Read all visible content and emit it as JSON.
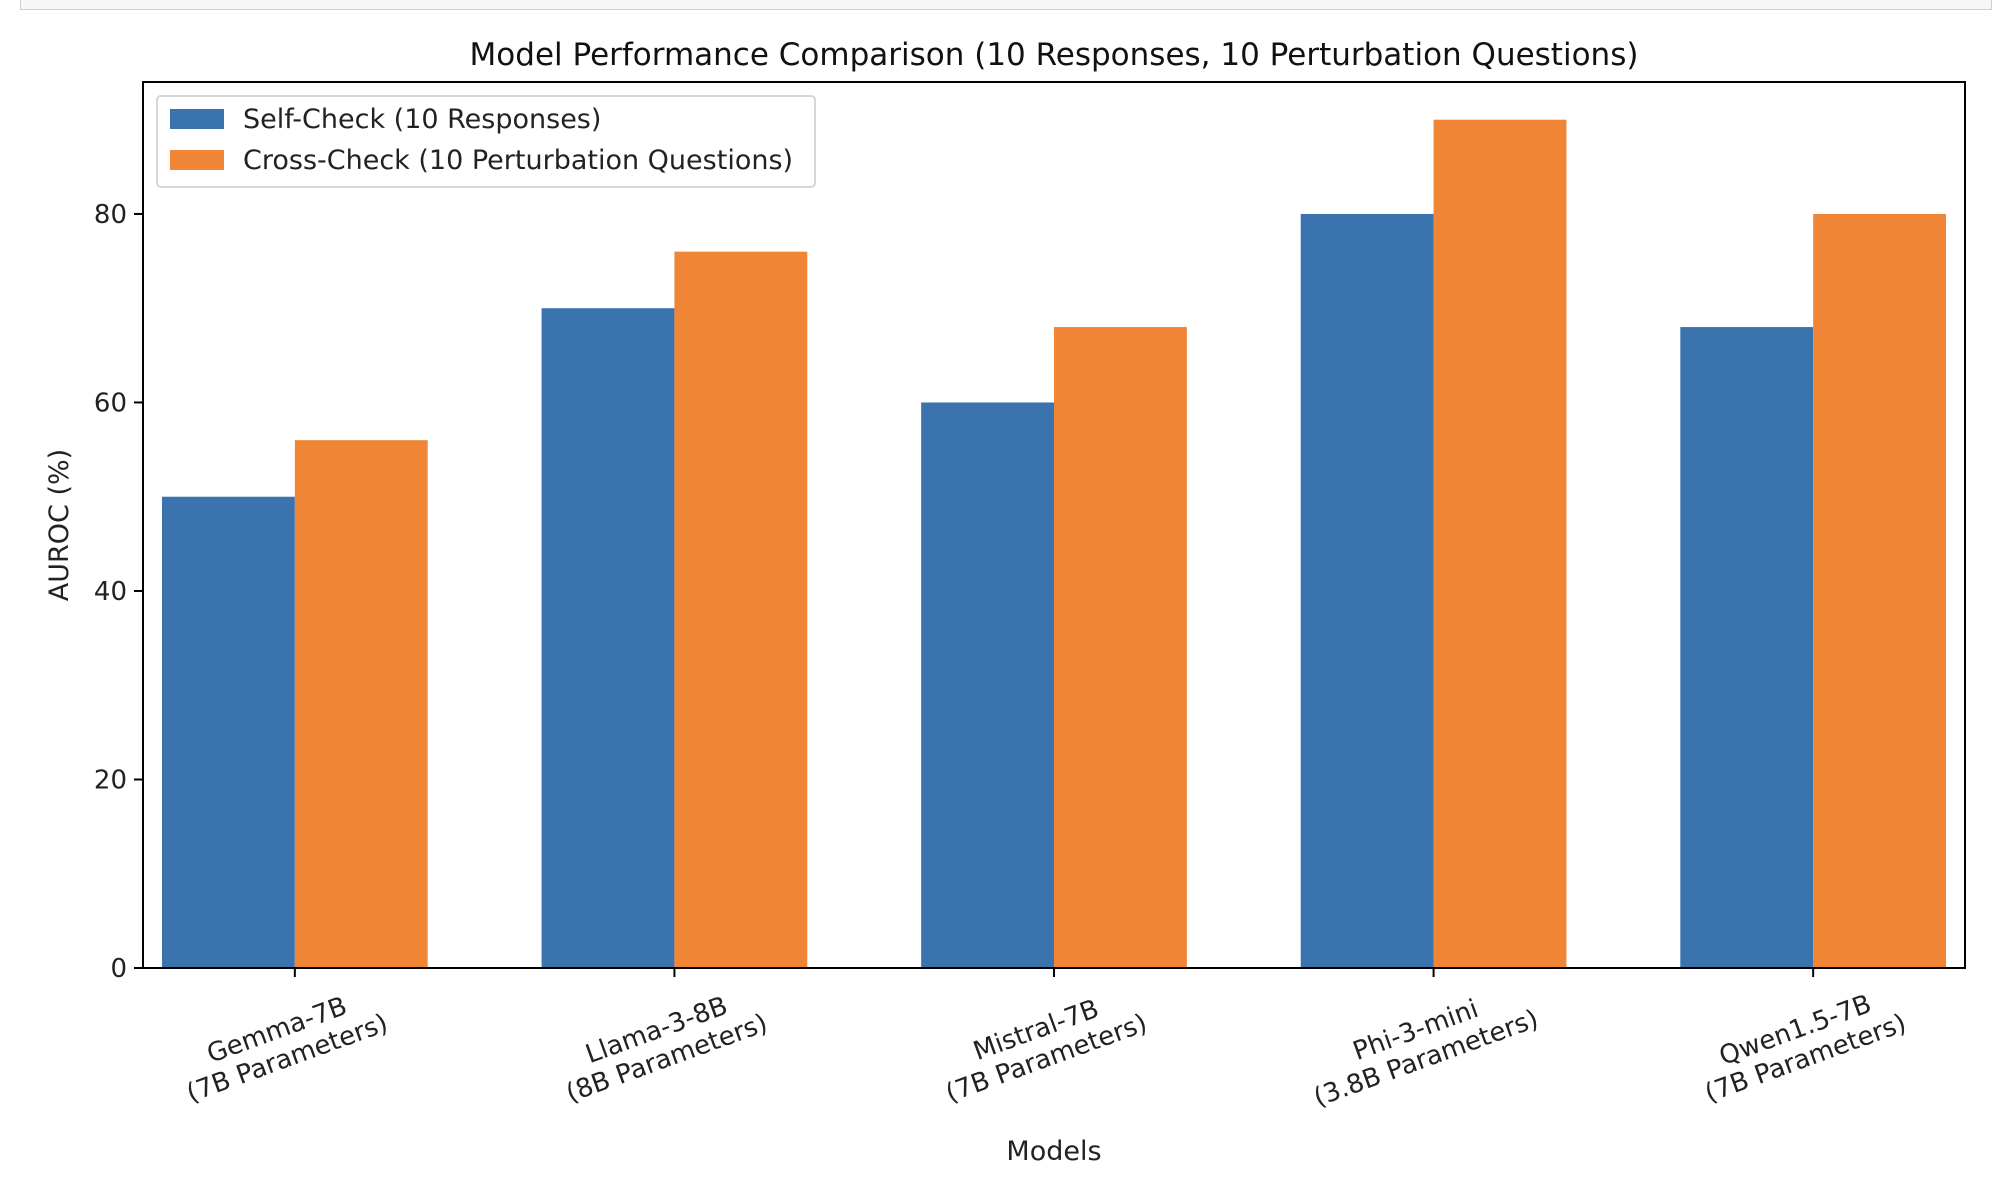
{
  "chart_data": {
    "type": "bar",
    "title": "Model Performance Comparison (10 Responses, 10 Perturbation Questions)",
    "xlabel": "Models",
    "ylabel": "AUROC (%)",
    "ylim": [
      0,
      94
    ],
    "yticks": [
      0,
      20,
      40,
      60,
      80
    ],
    "categories": [
      [
        "Gemma-7B",
        "(7B Parameters)"
      ],
      [
        "Llama-3-8B",
        "(8B Parameters)"
      ],
      [
        "Mistral-7B",
        "(7B Parameters)"
      ],
      [
        "Phi-3-mini",
        "(3.8B Parameters)"
      ],
      [
        "Qwen1.5-7B",
        "(7B Parameters)"
      ]
    ],
    "series": [
      {
        "name": "Self-Check (10 Responses)",
        "color": "#3a73ad",
        "values": [
          50,
          70,
          60,
          80,
          68
        ]
      },
      {
        "name": "Cross-Check (10 Perturbation Questions)",
        "color": "#ef8535",
        "values": [
          56,
          76,
          68,
          90,
          80
        ]
      }
    ],
    "grid": false,
    "legend_position": "upper-left"
  }
}
